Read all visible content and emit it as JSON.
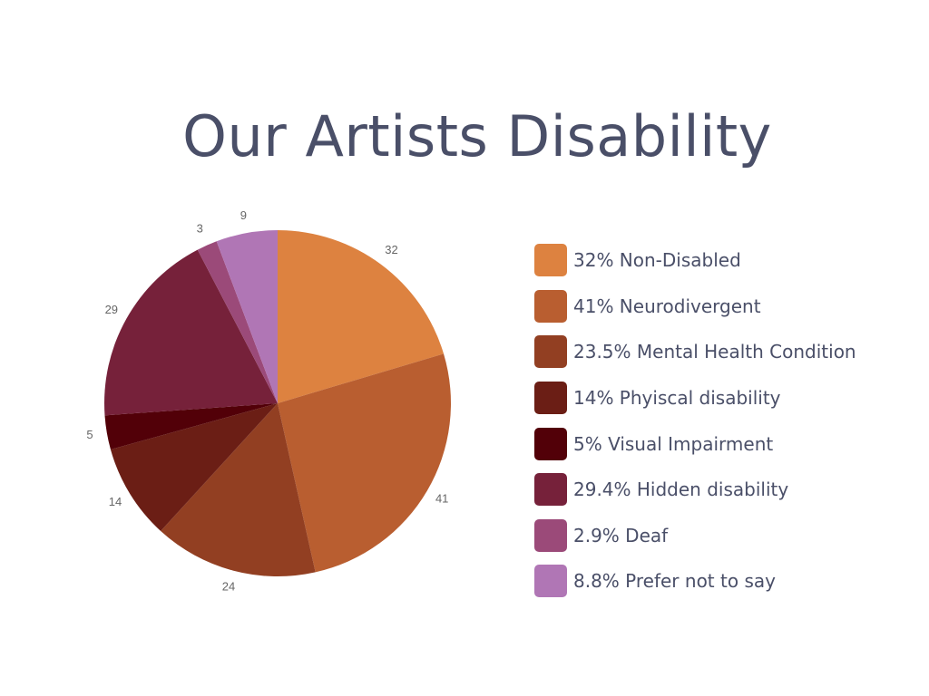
{
  "chart_data": {
    "type": "pie",
    "title": "Our Artists Disability",
    "categories": [
      "Non-Disabled",
      "Neurodivergent",
      "Mental Health Condition",
      "Phyiscal disability",
      "Visual Impairment",
      "Hidden disability",
      "Deaf",
      "Prefer not to say"
    ],
    "values": [
      32,
      41,
      24,
      14,
      5,
      29,
      3,
      9
    ],
    "slice_labels": [
      "32",
      "41",
      "24",
      "14",
      "5",
      "29",
      "3",
      "9"
    ],
    "colors": [
      "#DD8240",
      "#B95E30",
      "#923F22",
      "#6B1E15",
      "#520008",
      "#76213A",
      "#9B4A79",
      "#B076B5"
    ],
    "legend_placement": "right",
    "legend": [
      {
        "label": "32% Non-Disabled",
        "color": "#DD8240"
      },
      {
        "label": "41% Neurodivergent",
        "color": "#B95E30"
      },
      {
        "label": "23.5% Mental Health Condition",
        "color": "#923F22"
      },
      {
        "label": "14% Phyiscal disability",
        "color": "#6B1E15"
      },
      {
        "label": "5% Visual Impairment",
        "color": "#520008"
      },
      {
        "label": "29.4% Hidden disability",
        "color": "#76213A"
      },
      {
        "label": "2.9% Deaf",
        "color": "#9B4A79"
      },
      {
        "label": "8.8% Prefer not to say",
        "color": "#B076B5"
      }
    ]
  }
}
